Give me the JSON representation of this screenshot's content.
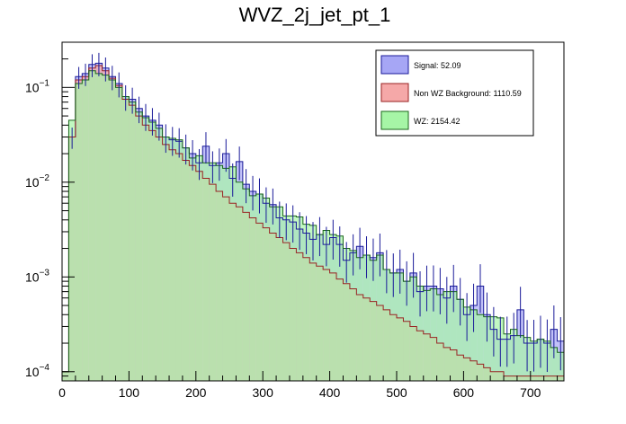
{
  "chart_data": {
    "type": "histogram",
    "title": "WVZ_2j_jet_pt_1",
    "xlabel": "",
    "ylabel": "",
    "xlim": [
      0,
      750
    ],
    "ylim": [
      8e-05,
      0.3
    ],
    "y_scale": "log",
    "bin_width": 10,
    "x_ticks": [
      0,
      100,
      200,
      300,
      400,
      500,
      600,
      700
    ],
    "x_tick_labels": [
      "0",
      "100",
      "200",
      "300",
      "400",
      "500",
      "600",
      "700"
    ],
    "y_ticks": [
      0.0001,
      0.001,
      0.01,
      0.1
    ],
    "y_tick_bases": [
      "10",
      "10",
      "10",
      "10"
    ],
    "y_tick_exps": [
      "−4",
      "−3",
      "−2",
      "−1"
    ],
    "grid": false,
    "legend_position": "top-right",
    "series": [
      {
        "name": "Signal: 52.09",
        "color": "#a6a6f5",
        "edge": "#1a1a99",
        "values": [
          0.0001,
          0.03,
          0.13,
          0.14,
          0.175,
          0.18,
          0.16,
          0.13,
          0.11,
          0.08,
          0.075,
          0.06,
          0.05,
          0.045,
          0.04,
          0.03,
          0.028,
          0.027,
          0.023,
          0.02,
          0.016,
          0.024,
          0.015,
          0.016,
          0.02,
          0.011,
          0.0165,
          0.0095,
          0.008,
          0.0075,
          0.006,
          0.0058,
          0.0042,
          0.004,
          0.0038,
          0.0032,
          0.0029,
          0.0025,
          0.0028,
          0.0022,
          0.0026,
          0.0022,
          0.0015,
          0.0018,
          0.0021,
          0.0017,
          0.0016,
          0.0018,
          0.0012,
          0.0011,
          0.0012,
          0.0009,
          0.0011,
          0.0007,
          0.0008,
          0.0008,
          0.00075,
          0.0006,
          0.0008,
          0.00058,
          0.0004,
          0.0005,
          0.0008,
          0.0004,
          0.00028,
          0.00022,
          0.00022,
          0.00024,
          0.00045,
          0.0002,
          0.0002,
          0.00022,
          0.0002,
          0.00028,
          0.00021
        ]
      },
      {
        "name": "Non WZ Background: 1110.59",
        "color": "#f5a8a8",
        "edge": "#992222",
        "values": [
          0.0001,
          0.03,
          0.12,
          0.13,
          0.16,
          0.17,
          0.15,
          0.125,
          0.105,
          0.075,
          0.065,
          0.05,
          0.04,
          0.035,
          0.03,
          0.025,
          0.022,
          0.02,
          0.017,
          0.015,
          0.013,
          0.011,
          0.0095,
          0.008,
          0.007,
          0.006,
          0.0055,
          0.0048,
          0.0042,
          0.0037,
          0.0033,
          0.0029,
          0.0026,
          0.0023,
          0.002,
          0.0018,
          0.0016,
          0.0014,
          0.0013,
          0.0012,
          0.0011,
          0.00095,
          0.00085,
          0.00075,
          0.00065,
          0.0006,
          0.00055,
          0.0005,
          0.00045,
          0.0004,
          0.00037,
          0.00034,
          0.0003,
          0.00027,
          0.00025,
          0.00023,
          0.0002,
          0.00018,
          0.00017,
          0.00015,
          0.00014,
          0.00013,
          0.00012,
          0.00011,
          0.0001,
          0.0001,
          9e-05,
          9e-05,
          9e-05,
          9e-05,
          9e-05,
          9e-05,
          9e-05,
          9e-05,
          9e-05
        ]
      },
      {
        "name": "WZ: 2154.42",
        "color": "#a6f5a6",
        "edge": "#1a661a",
        "values": [
          0.0001,
          0.045,
          0.11,
          0.12,
          0.15,
          0.14,
          0.135,
          0.12,
          0.1,
          0.08,
          0.07,
          0.055,
          0.048,
          0.043,
          0.037,
          0.03,
          0.029,
          0.028,
          0.023,
          0.018,
          0.019,
          0.016,
          0.016,
          0.015,
          0.014,
          0.0145,
          0.01,
          0.0085,
          0.0072,
          0.0075,
          0.0068,
          0.0055,
          0.0055,
          0.0044,
          0.0044,
          0.0043,
          0.0036,
          0.0035,
          0.0028,
          0.0031,
          0.0028,
          0.0027,
          0.002,
          0.0019,
          0.0016,
          0.0017,
          0.0015,
          0.0017,
          0.0012,
          0.0011,
          0.0011,
          0.0009,
          0.001,
          0.0008,
          0.00072,
          0.00075,
          0.00065,
          0.0007,
          0.0007,
          0.00058,
          0.00048,
          0.00045,
          0.0004,
          0.00038,
          0.00038,
          0.00037,
          0.00025,
          0.00028,
          0.00024,
          0.00023,
          0.00021,
          0.00022,
          0.00021,
          0.00018,
          0.00016
        ]
      }
    ],
    "overlap_color": "#778b59",
    "error_bar_color": "#1a1a99"
  }
}
